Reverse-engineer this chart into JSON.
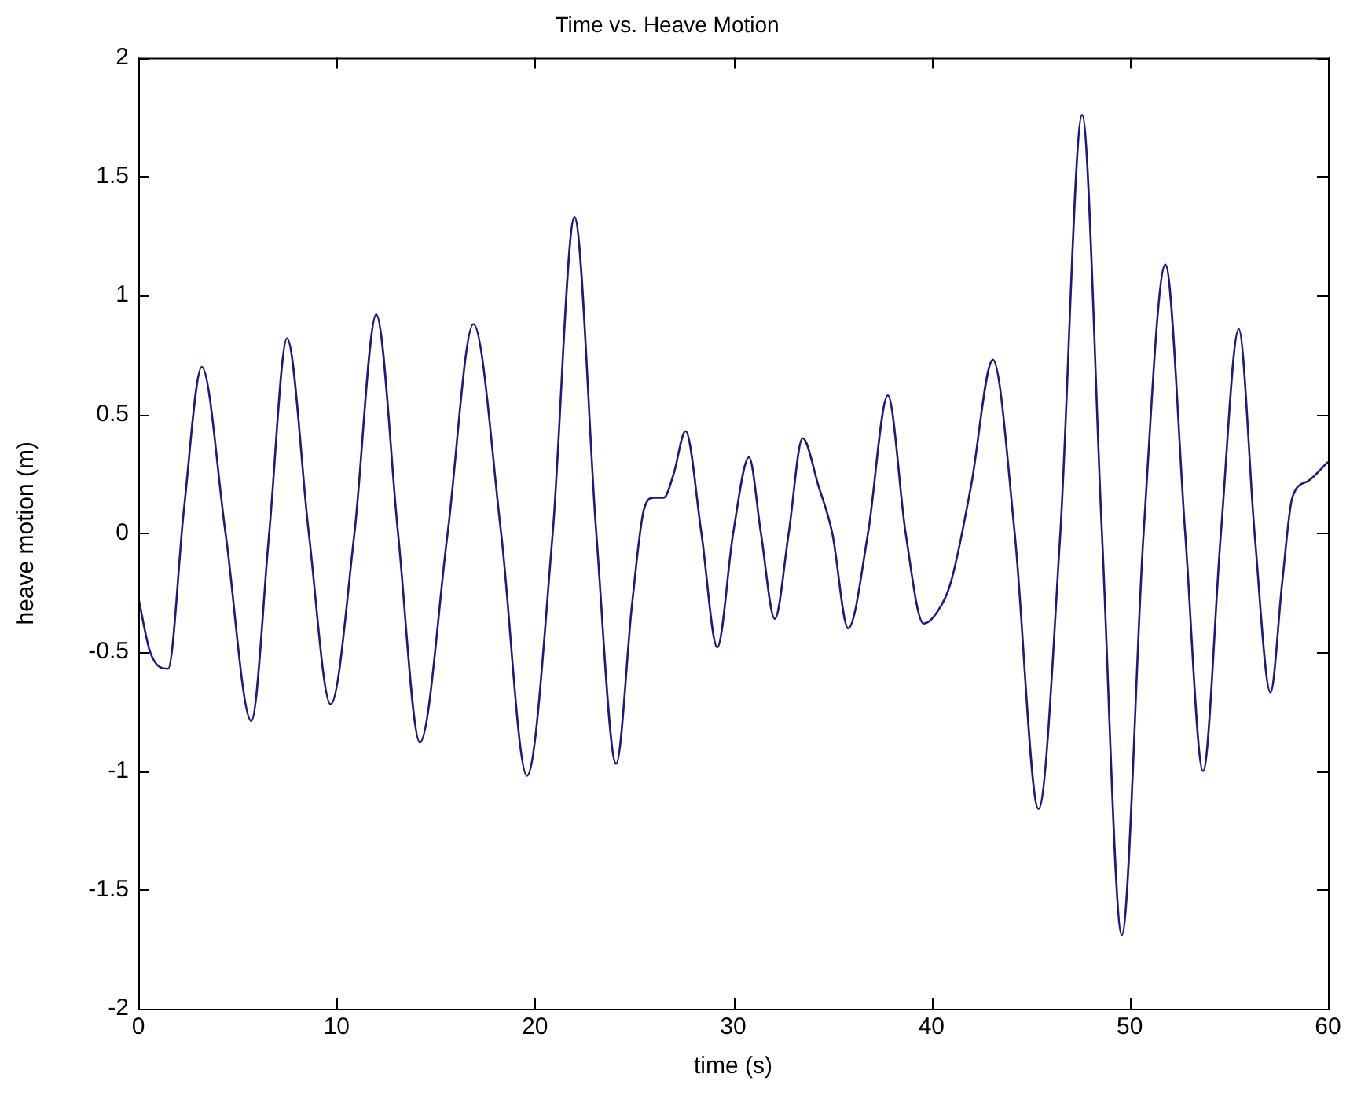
{
  "chart_data": {
    "type": "line",
    "title": "Time vs. Heave Motion",
    "xlabel": "time (s)",
    "ylabel": "heave motion (m)",
    "xlim": [
      0,
      60
    ],
    "xticks": [
      0,
      10,
      20,
      30,
      40,
      50,
      60
    ],
    "ylim": [
      -2,
      2
    ],
    "yticks": [
      -2,
      -1.5,
      -1,
      -0.5,
      0,
      0.5,
      1,
      1.5,
      2
    ],
    "grid": false,
    "legend": false,
    "marker": "none",
    "line_style": "solid",
    "series": [
      {
        "color": "#1a1a80",
        "x": [
          0,
          0.6,
          1.5,
          2.3,
          3.2,
          4.4,
          5.7,
          6.6,
          7.5,
          8.6,
          9.7,
          10.9,
          12,
          13.1,
          14.2,
          15.6,
          16.9,
          18.3,
          19.6,
          20.9,
          22,
          23.1,
          24.1,
          24.9,
          25.5,
          26,
          26.5,
          27,
          27.6,
          28.4,
          29.2,
          30,
          30.8,
          31.4,
          32.1,
          32.8,
          33.5,
          34.3,
          35,
          35.8,
          36.8,
          37.8,
          38.7,
          39.6,
          40.3,
          41,
          42,
          43.1,
          44.2,
          45.4,
          46.5,
          47.6,
          48.6,
          49.6,
          50.7,
          51.8,
          52.8,
          53.7,
          54.6,
          55.5,
          56.3,
          57.1,
          57.7,
          58.2,
          59,
          60
        ],
        "values": [
          -0.27,
          -0.5,
          -0.57,
          0.1,
          0.7,
          0,
          -0.79,
          0,
          0.82,
          0,
          -0.72,
          0,
          0.92,
          0,
          -0.88,
          0,
          0.88,
          0,
          -1.02,
          0,
          1.33,
          0,
          -0.97,
          -0.3,
          0.1,
          0.15,
          0.15,
          0.25,
          0.43,
          0,
          -0.48,
          0,
          0.32,
          0,
          -0.36,
          0,
          0.4,
          0.2,
          0,
          -0.4,
          0,
          0.58,
          0,
          -0.38,
          -0.33,
          -0.2,
          0.2,
          0.73,
          0,
          -1.16,
          0,
          1.76,
          0,
          -1.69,
          0,
          1.13,
          0,
          -1,
          0,
          0.86,
          0,
          -0.67,
          -0.2,
          0.15,
          0.22,
          0.3
        ]
      }
    ]
  }
}
